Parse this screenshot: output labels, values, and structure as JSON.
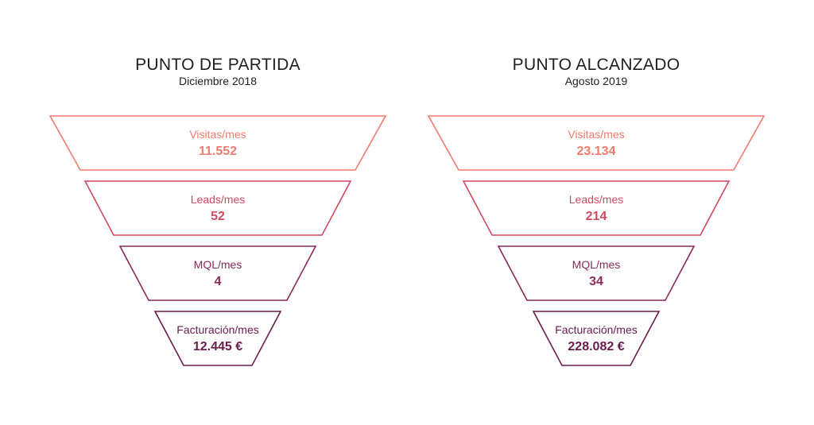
{
  "stage_colors": [
    "#f07b6e",
    "#d0495e",
    "#8a2a58",
    "#6a1c4c"
  ],
  "funnels": [
    {
      "title": "PUNTO DE PARTIDA",
      "subtitle": "Diciembre 2018",
      "stages": [
        {
          "label": "Visitas/mes",
          "value": "11.552"
        },
        {
          "label": "Leads/mes",
          "value": "52"
        },
        {
          "label": "MQL/mes",
          "value": "4"
        },
        {
          "label": "Facturación/mes",
          "value": "12.445 €"
        }
      ]
    },
    {
      "title": "PUNTO ALCANZADO",
      "subtitle": "Agosto 2019",
      "stages": [
        {
          "label": "Visitas/mes",
          "value": "23.134"
        },
        {
          "label": "Leads/mes",
          "value": "214"
        },
        {
          "label": "MQL/mes",
          "value": "34"
        },
        {
          "label": "Facturación/mes",
          "value": "228.082 €"
        }
      ]
    }
  ]
}
